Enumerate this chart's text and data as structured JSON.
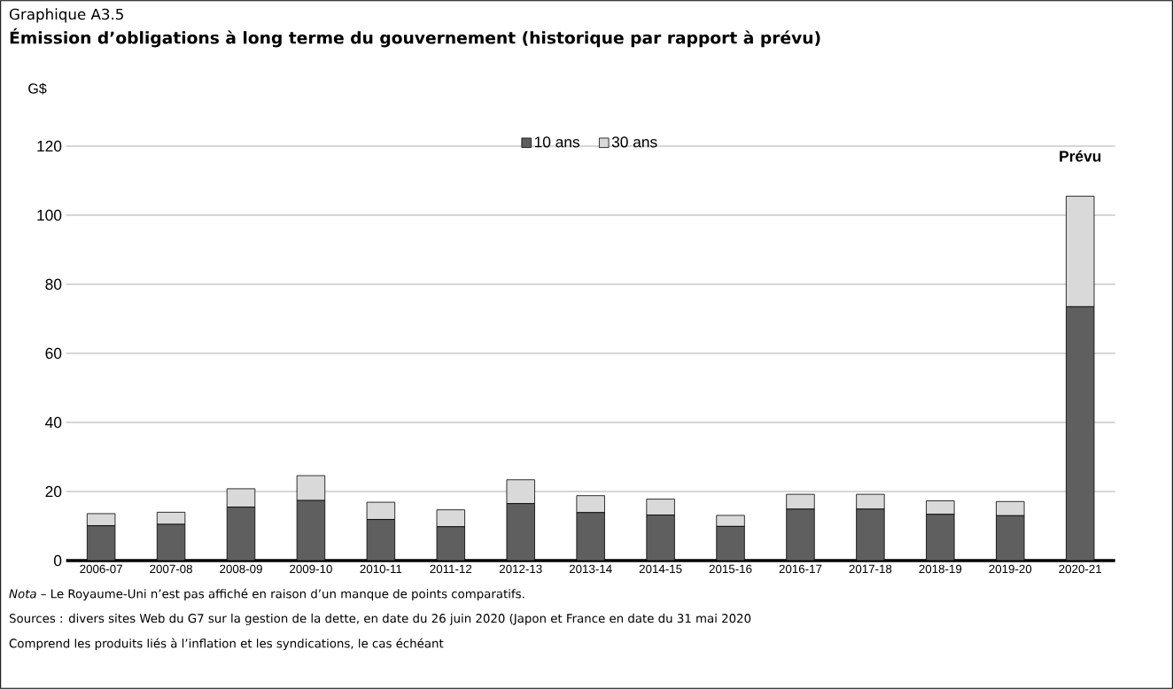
{
  "chart_data": {
    "type": "bar",
    "stacked": true,
    "subtitle": "Graphique A3.5",
    "title": "Émission d’obligations à long terme du gouvernement (historique par rapport à prévu)",
    "ylabel": "G$",
    "categories": [
      "2006-07",
      "2007-08",
      "2008-09",
      "2009-10",
      "2010-11",
      "2011-12",
      "2012-13",
      "2013-14",
      "2014-15",
      "2015-16",
      "2016-17",
      "2017-18",
      "2018-19",
      "2019-20",
      "2020-21"
    ],
    "series": [
      {
        "name": "10 ans",
        "color": "#5f5f5f",
        "values": [
          10.1,
          10.5,
          15.5,
          17.4,
          11.9,
          9.8,
          16.5,
          13.9,
          13.2,
          9.9,
          14.9,
          14.9,
          13.4,
          13.0,
          73.5
        ]
      },
      {
        "name": "30 ans",
        "color": "#d9d9d9",
        "values": [
          3.5,
          3.5,
          5.3,
          7.2,
          5.0,
          4.9,
          6.9,
          4.9,
          4.6,
          3.2,
          4.3,
          4.3,
          3.9,
          4.1,
          32.0
        ]
      }
    ],
    "ylim": [
      0,
      120
    ],
    "yticks": [
      0,
      20,
      40,
      60,
      80,
      100,
      120
    ],
    "grid": "y",
    "legend": "top",
    "annotations": [
      "Prévu",
      "*Nota* – Le Royaume-Uni n’est pas affiché en raison d’un manque de points comparatifs.",
      "Sources : divers sites Web du G7 sur la gestion de la dette, en date du 26 juin 2020 (Japon et France en date du 31 mai 2020",
      "Comprend les produits liés à l’inflation et les syndications, le cas échéant"
    ]
  }
}
